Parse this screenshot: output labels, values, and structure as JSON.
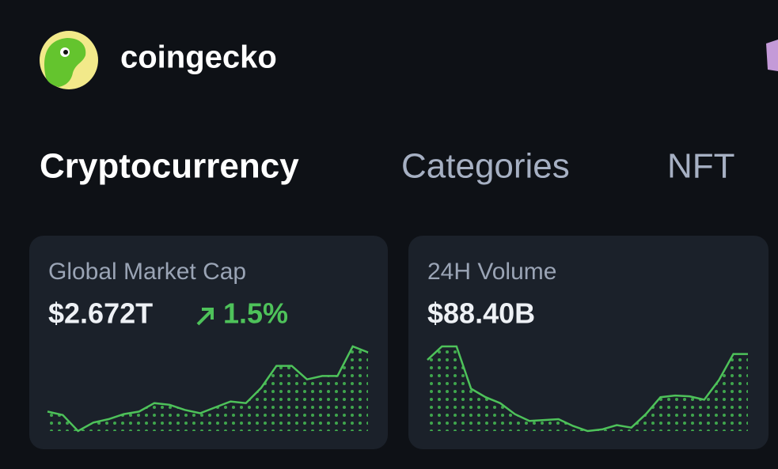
{
  "header": {
    "brand": "coingecko"
  },
  "tabs": [
    "Cryptocurrency",
    "Categories",
    "NFT"
  ],
  "cards": [
    {
      "title": "Global Market Cap",
      "value": "$2.672T",
      "change": "1.5%",
      "sparkline": {
        "values": [
          23,
          19,
          0,
          10,
          14,
          20,
          23,
          33,
          31,
          25,
          21,
          28,
          35,
          33,
          51,
          77,
          77,
          61,
          65,
          65,
          100,
          93
        ],
        "ylim": [
          0,
          100
        ],
        "color": "#4ec25a"
      }
    },
    {
      "title": "24H Volume",
      "value": "$88.40B",
      "sparkline": {
        "values": [
          84,
          100,
          100,
          50,
          40,
          33,
          20,
          12,
          13,
          14,
          6,
          0,
          2,
          7,
          4,
          20,
          40,
          42,
          41,
          37,
          60,
          91,
          91
        ],
        "ylim": [
          0,
          100
        ],
        "color": "#4ec25a"
      }
    }
  ]
}
